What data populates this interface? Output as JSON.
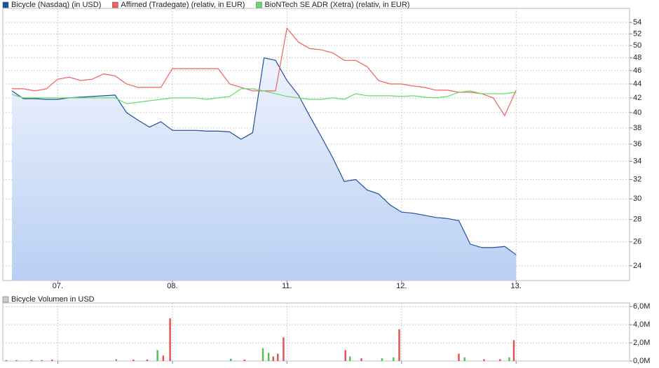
{
  "chart_data": [
    {
      "type": "line",
      "log_scale": true,
      "grid": true,
      "x": [
        0.6,
        0.7,
        0.8,
        0.9,
        1.0,
        1.1,
        1.2,
        1.3,
        1.4,
        1.5,
        1.6,
        1.7,
        1.8,
        1.9,
        2.0,
        2.1,
        2.2,
        2.3,
        2.4,
        2.5,
        2.6,
        2.7,
        2.8,
        2.9,
        3.0,
        3.1,
        3.2,
        3.3,
        3.4,
        3.5,
        3.6,
        3.7,
        3.8,
        3.9,
        4.0,
        4.1,
        4.2,
        4.3,
        4.4,
        4.5,
        4.6,
        4.7,
        4.8,
        4.9,
        5.0
      ],
      "xlim": [
        0.52,
        5.99
      ],
      "xticks": [
        {
          "value": 1,
          "label": "07."
        },
        {
          "value": 2,
          "label": "08."
        },
        {
          "value": 3,
          "label": "11."
        },
        {
          "value": 4,
          "label": "12."
        },
        {
          "value": 5,
          "label": "13."
        }
      ],
      "ylim": [
        22.85,
        56.6
      ],
      "yticks": [
        24,
        26,
        28,
        30,
        32,
        34,
        36,
        38,
        40,
        42,
        44,
        46,
        48,
        50,
        52,
        54
      ],
      "series": [
        {
          "name": "Bicycle (Nasdaq) (in USD)",
          "color": "#1f4f9f",
          "fill": true,
          "values": [
            43.0,
            41.9,
            41.9,
            41.8,
            41.8,
            42.0,
            42.1,
            42.2,
            42.3,
            42.4,
            40.0,
            39.0,
            38.1,
            38.8,
            37.7,
            37.7,
            37.7,
            37.6,
            37.6,
            37.5,
            36.6,
            37.4,
            48.0,
            47.6,
            44.5,
            42.4,
            39.5,
            36.9,
            34.4,
            31.8,
            32.0,
            30.9,
            30.5,
            29.4,
            28.7,
            28.6,
            28.4,
            28.2,
            28.1,
            27.9,
            25.8,
            25.5,
            25.5,
            25.6,
            24.9
          ]
        },
        {
          "name": "Affimed (Tradegate) (relativ, in EUR)",
          "color": "#f06060",
          "fill": false,
          "values": [
            43.3,
            43.3,
            43.0,
            43.3,
            44.7,
            45.0,
            44.5,
            44.7,
            45.5,
            45.2,
            44.0,
            43.5,
            43.5,
            43.5,
            46.3,
            46.3,
            46.3,
            46.3,
            46.3,
            44.0,
            43.5,
            43.0,
            43.0,
            43.0,
            53.0,
            50.6,
            49.5,
            49.3,
            48.8,
            47.6,
            47.6,
            46.6,
            44.5,
            44.0,
            44.0,
            43.7,
            43.5,
            43.1,
            43.1,
            42.8,
            42.8,
            42.6,
            42.0,
            39.6,
            43.1
          ]
        },
        {
          "name": "BioNTech SE ADR (Xetra) (relativ, in EUR)",
          "color": "#66dd66",
          "fill": false,
          "values": [
            42.5,
            42.0,
            42.0,
            42.0,
            42.0,
            42.0,
            42.0,
            42.0,
            42.0,
            42.0,
            41.2,
            41.4,
            41.6,
            41.8,
            42.0,
            42.0,
            42.0,
            41.8,
            42.0,
            42.2,
            43.3,
            43.3,
            43.0,
            42.6,
            42.2,
            42.0,
            41.8,
            41.8,
            42.0,
            41.8,
            42.6,
            42.3,
            42.3,
            42.3,
            42.2,
            42.3,
            42.1,
            42.0,
            42.2,
            42.8,
            43.0,
            42.6,
            42.6,
            42.6,
            42.8
          ]
        }
      ]
    },
    {
      "type": "bar",
      "grid": true,
      "x": [
        0.55,
        0.64,
        0.77,
        0.86,
        0.95,
        1.51,
        1.66,
        1.78,
        1.87,
        1.92,
        1.98,
        2.51,
        2.63,
        2.79,
        2.84,
        2.88,
        2.92,
        2.97,
        3.51,
        3.55,
        3.65,
        3.83,
        3.93,
        3.98,
        4.5,
        4.55,
        4.72,
        4.86,
        4.94,
        4.98
      ],
      "xlim": [
        0.52,
        5.99
      ],
      "xticks": [
        1,
        2,
        3,
        4,
        5
      ],
      "ylim": [
        0,
        6400000
      ],
      "yticks": [
        {
          "value": 0,
          "label": "0,0M"
        },
        {
          "value": 2000000,
          "label": "2,0M"
        },
        {
          "value": 4000000,
          "label": "4,0M"
        },
        {
          "value": 6000000,
          "label": "6,0M"
        }
      ],
      "series": [
        {
          "name": "Bicycle Volumen in USD",
          "color": "#cccccc",
          "values": [
            100000,
            100000,
            100000,
            100000,
            150000,
            200000,
            150000,
            150000,
            1200000,
            600000,
            4700000,
            250000,
            150000,
            1400000,
            900000,
            500000,
            800000,
            2600000,
            1200000,
            500000,
            300000,
            300000,
            400000,
            3500000,
            800000,
            400000,
            200000,
            200000,
            400000,
            2300000
          ],
          "colors": [
            "#e05050",
            "#e05050",
            "#e05050",
            "#e05050",
            "#e05050",
            "#50c050",
            "#e05050",
            "#e05050",
            "#50c050",
            "#e05050",
            "#e05050",
            "#50c050",
            "#e05050",
            "#50c050",
            "#50c050",
            "#e05050",
            "#e05050",
            "#e05050",
            "#e05050",
            "#50c050",
            "#e05050",
            "#50c050",
            "#50c050",
            "#e05050",
            "#e05050",
            "#50c050",
            "#e05050",
            "#e05050",
            "#50c050",
            "#e05050"
          ]
        }
      ]
    }
  ]
}
